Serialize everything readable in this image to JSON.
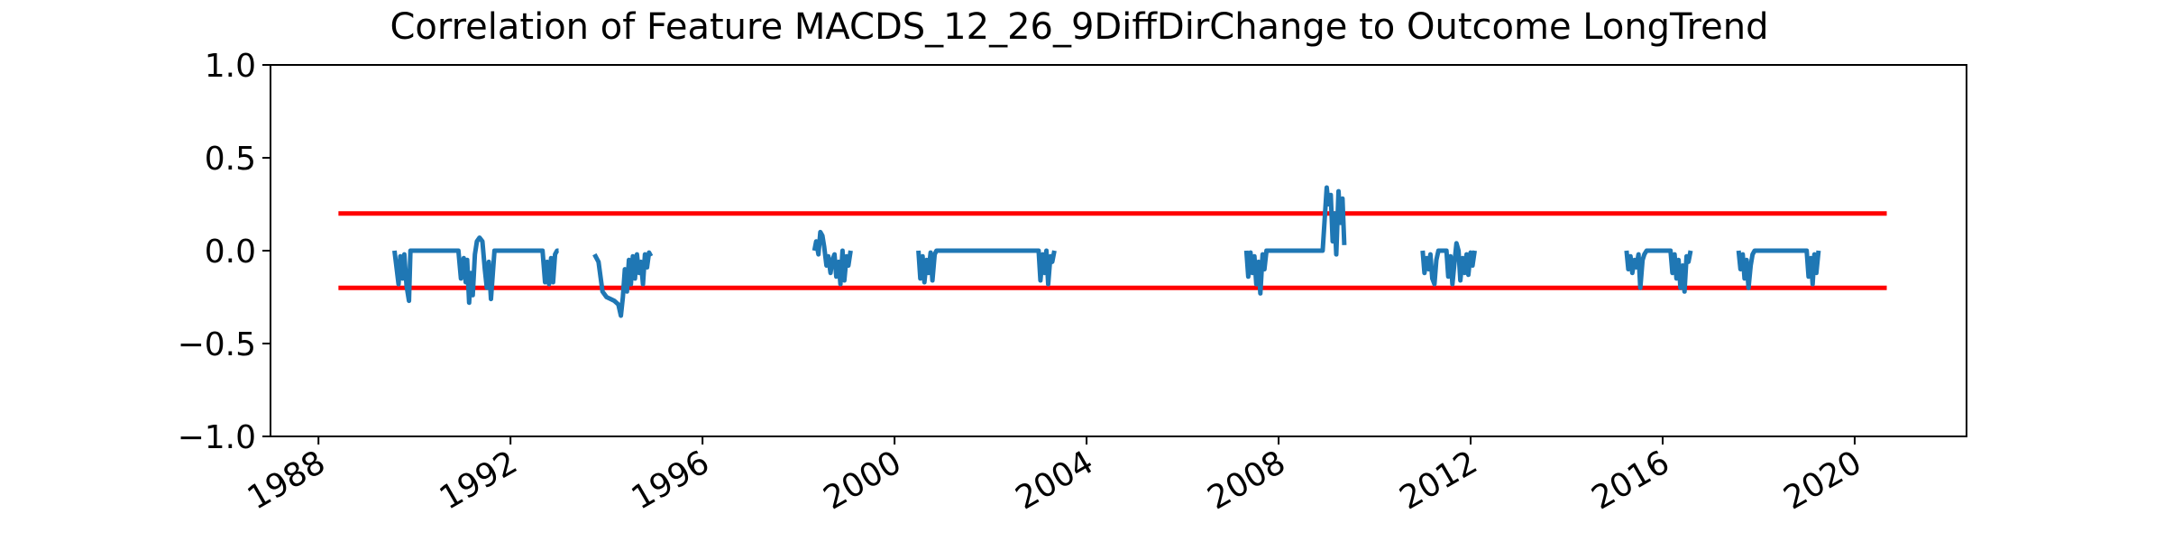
{
  "chart_data": {
    "type": "line",
    "title": "Correlation of Feature MACDS_12_26_9DiffDirChange to Outcome LongTrend",
    "xlabel": "",
    "ylabel": "",
    "x_axis_type": "date",
    "xlim": [
      "1987-01-01",
      "2022-05-01"
    ],
    "ylim": [
      -1.0,
      1.0
    ],
    "x_ticks": [
      "1988",
      "1992",
      "1996",
      "2000",
      "2004",
      "2008",
      "2012",
      "2016",
      "2020"
    ],
    "y_ticks": [
      "1.0",
      "0.5",
      "0.0",
      "−0.5",
      "−1.0"
    ],
    "grid": false,
    "legend": "none",
    "series_color": "#1f77b4",
    "threshold_color": "#ff0000",
    "thresholds": [
      {
        "value": 0.2,
        "x_start": "1988-06-01",
        "x_end": "2020-09-01"
      },
      {
        "value": -0.2,
        "x_start": "1988-06-01",
        "x_end": "2020-09-01"
      }
    ],
    "series": [
      {
        "segments": [
          {
            "x": [
              "1989-08-01",
              "1989-09-01",
              "1989-09-15",
              "1989-10-01",
              "1989-10-15",
              "1989-11-01",
              "1989-11-20",
              "1989-12-01",
              "1990-01-01",
              "1990-06-01",
              "1990-12-01",
              "1990-12-20",
              "1991-01-10",
              "1991-01-25",
              "1991-02-05",
              "1991-02-20",
              "1991-03-05",
              "1991-03-20",
              "1991-04-05",
              "1991-04-20",
              "1991-05-10",
              "1991-06-01",
              "1991-06-20",
              "1991-07-05",
              "1991-07-20",
              "1991-08-05",
              "1991-09-01",
              "1991-10-01",
              "1992-01-01",
              "1992-06-01",
              "1992-09-01",
              "1992-09-20",
              "1992-10-05",
              "1992-10-20",
              "1992-11-05",
              "1992-11-20",
              "1992-12-05",
              "1992-12-20",
              "1993-01-01"
            ],
            "y": [
              0.0,
              -0.18,
              -0.03,
              -0.15,
              -0.02,
              -0.19,
              -0.27,
              0.0,
              0.0,
              0.0,
              0.0,
              -0.15,
              -0.04,
              -0.17,
              -0.05,
              -0.28,
              -0.12,
              -0.24,
              -0.02,
              0.05,
              0.07,
              0.05,
              -0.1,
              -0.2,
              -0.06,
              -0.26,
              0.0,
              0.0,
              0.0,
              0.0,
              0.0,
              -0.17,
              -0.06,
              -0.18,
              -0.04,
              -0.17,
              -0.02,
              0.0,
              0.0
            ]
          },
          {
            "x": [
              "1993-10-01",
              "1993-11-01",
              "1993-12-01",
              "1994-01-01",
              "1994-02-01",
              "1994-03-01",
              "1994-04-01",
              "1994-04-20",
              "1994-05-05",
              "1994-05-20",
              "1994-06-05",
              "1994-06-20",
              "1994-07-05",
              "1994-07-20",
              "1994-08-05",
              "1994-08-20",
              "1994-09-05",
              "1994-09-20",
              "1994-10-05",
              "1994-10-20",
              "1994-11-05",
              "1994-11-20",
              "1994-12-05"
            ],
            "y": [
              -0.02,
              -0.06,
              -0.22,
              -0.25,
              -0.26,
              -0.27,
              -0.29,
              -0.35,
              -0.25,
              -0.1,
              -0.22,
              -0.05,
              -0.18,
              -0.03,
              -0.15,
              -0.02,
              -0.12,
              -0.06,
              -0.18,
              -0.02,
              -0.09,
              -0.01,
              -0.03
            ]
          },
          {
            "x": [
              "1998-05-01",
              "1998-05-15",
              "1998-06-01",
              "1998-06-15",
              "1998-07-01",
              "1998-07-15",
              "1998-08-01",
              "1998-08-15",
              "1998-09-01",
              "1998-09-15",
              "1998-10-01",
              "1998-10-15",
              "1998-11-01",
              "1998-11-15",
              "1998-12-01",
              "1998-12-15",
              "1999-01-01",
              "1999-01-15",
              "1999-02-01"
            ],
            "y": [
              0.0,
              0.05,
              -0.02,
              0.1,
              0.08,
              0.02,
              -0.08,
              -0.03,
              -0.12,
              -0.05,
              -0.02,
              -0.14,
              -0.06,
              -0.18,
              0.0,
              -0.16,
              -0.03,
              -0.08,
              0.0
            ]
          },
          {
            "x": [
              "2000-07-01",
              "2000-07-15",
              "2000-08-01",
              "2000-08-15",
              "2000-09-01",
              "2000-09-15",
              "2000-10-01",
              "2000-10-15",
              "2000-11-01",
              "2000-11-15",
              "2000-12-01",
              "2001-01-01",
              "2002-01-01",
              "2002-12-01",
              "2003-01-01",
              "2003-01-15",
              "2003-02-01",
              "2003-02-15",
              "2003-03-01",
              "2003-03-15",
              "2003-04-01",
              "2003-04-15",
              "2003-05-01"
            ],
            "y": [
              0.0,
              -0.15,
              -0.03,
              -0.17,
              -0.05,
              -0.12,
              -0.01,
              -0.16,
              -0.02,
              0.0,
              0.0,
              0.0,
              0.0,
              0.0,
              0.0,
              -0.16,
              -0.02,
              -0.12,
              0.0,
              -0.18,
              -0.03,
              -0.06,
              0.0
            ]
          },
          {
            "x": [
              "2007-05-01",
              "2007-05-15",
              "2007-06-01",
              "2007-06-15",
              "2007-07-01",
              "2007-07-15",
              "2007-08-01",
              "2007-08-15",
              "2007-09-01",
              "2007-09-15",
              "2007-10-01",
              "2007-11-01",
              "2008-01-01",
              "2008-06-01",
              "2008-12-01",
              "2009-01-01",
              "2009-01-15",
              "2009-02-01",
              "2009-02-15",
              "2009-03-01",
              "2009-03-15",
              "2009-04-01",
              "2009-04-15",
              "2009-05-01",
              "2009-05-15"
            ],
            "y": [
              0.0,
              -0.14,
              -0.01,
              -0.12,
              -0.03,
              -0.18,
              -0.06,
              -0.23,
              -0.02,
              -0.1,
              0.0,
              0.0,
              0.0,
              0.0,
              0.0,
              0.34,
              0.25,
              0.3,
              0.05,
              0.2,
              -0.02,
              0.32,
              0.15,
              0.28,
              0.03
            ]
          },
          {
            "x": [
              "2011-01-01",
              "2011-01-15",
              "2011-02-01",
              "2011-02-15",
              "2011-03-01",
              "2011-03-15",
              "2011-04-01",
              "2011-04-15",
              "2011-05-01",
              "2011-06-01",
              "2011-07-01",
              "2011-07-15",
              "2011-08-01",
              "2011-08-15",
              "2011-09-01",
              "2011-09-15",
              "2011-10-01",
              "2011-10-15",
              "2011-11-01",
              "2011-11-15",
              "2011-12-01",
              "2011-12-15",
              "2012-01-01",
              "2012-01-15",
              "2012-02-01"
            ],
            "y": [
              0.0,
              -0.12,
              -0.04,
              -0.1,
              -0.02,
              -0.15,
              -0.18,
              -0.05,
              0.0,
              0.0,
              0.0,
              -0.14,
              -0.03,
              -0.18,
              -0.06,
              0.04,
              0.0,
              -0.16,
              -0.04,
              -0.12,
              -0.02,
              -0.13,
              -0.01,
              -0.08,
              0.0
            ]
          },
          {
            "x": [
              "2015-04-01",
              "2015-04-15",
              "2015-05-01",
              "2015-05-15",
              "2015-06-01",
              "2015-06-15",
              "2015-07-01",
              "2015-07-15",
              "2015-08-01",
              "2015-08-15",
              "2015-09-01",
              "2015-10-01",
              "2015-12-01",
              "2016-02-01",
              "2016-03-01",
              "2016-03-15",
              "2016-04-01",
              "2016-04-15",
              "2016-05-01",
              "2016-05-15",
              "2016-06-01",
              "2016-06-15",
              "2016-07-01",
              "2016-07-15",
              "2016-08-01"
            ],
            "y": [
              0.0,
              -0.1,
              -0.03,
              -0.12,
              -0.05,
              -0.09,
              -0.02,
              -0.2,
              -0.05,
              -0.02,
              0.0,
              0.0,
              0.0,
              0.0,
              0.0,
              -0.12,
              -0.02,
              -0.15,
              -0.05,
              -0.2,
              -0.08,
              -0.22,
              -0.03,
              -0.06,
              0.0
            ]
          },
          {
            "x": [
              "2017-08-01",
              "2017-08-15",
              "2017-09-01",
              "2017-09-15",
              "2017-10-01",
              "2017-10-15",
              "2017-11-01",
              "2017-11-15",
              "2017-12-01",
              "2018-01-01",
              "2018-06-01",
              "2018-12-01",
              "2019-01-01",
              "2019-01-15",
              "2019-02-01",
              "2019-02-15",
              "2019-03-01",
              "2019-03-15",
              "2019-04-01"
            ],
            "y": [
              0.0,
              -0.1,
              -0.02,
              -0.15,
              -0.05,
              -0.2,
              -0.08,
              -0.02,
              0.0,
              0.0,
              0.0,
              0.0,
              0.0,
              -0.14,
              -0.04,
              -0.18,
              -0.02,
              -0.12,
              0.0
            ]
          }
        ]
      }
    ]
  }
}
